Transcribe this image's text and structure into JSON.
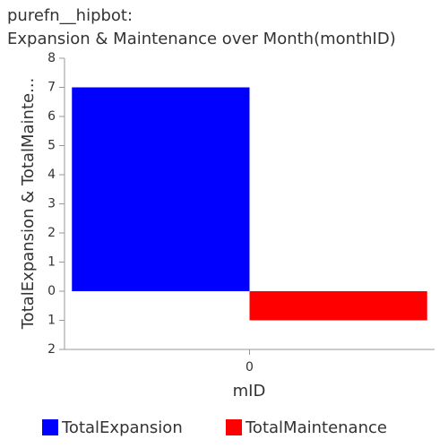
{
  "chart_data": {
    "type": "bar",
    "title": [
      "purefn__hipbot:",
      "Expansion & Maintenance over Month(monthID)"
    ],
    "x_label": "mID",
    "y_label": "TotalExpansion & TotalMainte...",
    "categories": [
      "0"
    ],
    "series": [
      {
        "name": "TotalExpansion",
        "color": "#0000ff",
        "values": [
          7
        ]
      },
      {
        "name": "TotalMaintenance",
        "color": "#ff0000",
        "values": [
          -1
        ]
      }
    ],
    "ylim": [
      -2,
      8
    ],
    "yticks": [
      {
        "value": -2,
        "label": "2"
      },
      {
        "value": -1,
        "label": "1"
      },
      0,
      1,
      2,
      3,
      4,
      5,
      6,
      7,
      8
    ],
    "legend": "bottom"
  }
}
